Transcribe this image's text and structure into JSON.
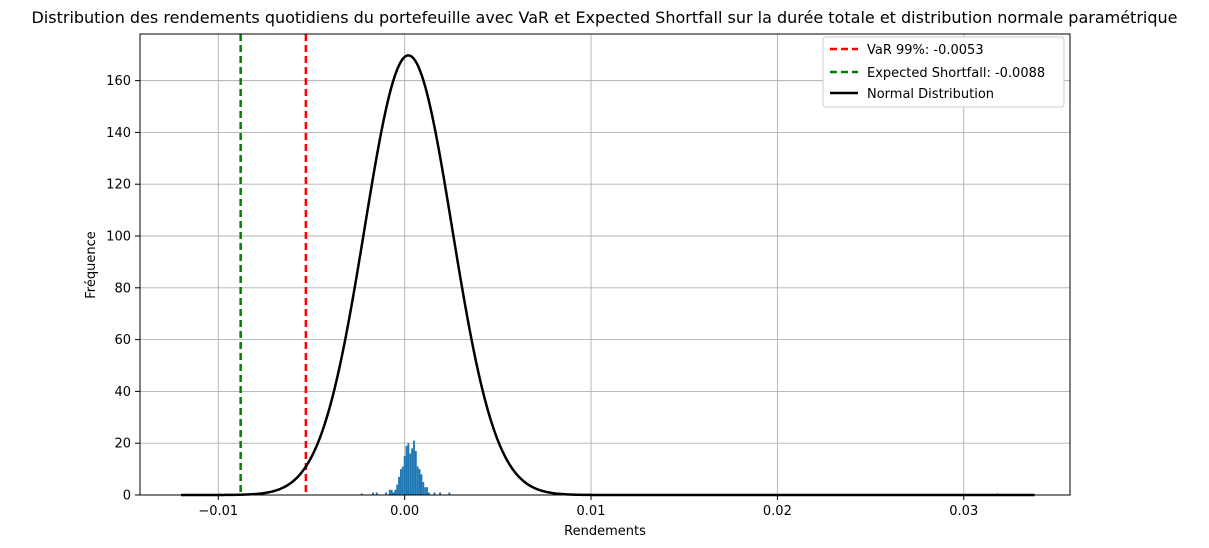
{
  "chart_data": {
    "type": "histogram",
    "title": "Distribution des rendements quotidiens du portefeuille avec VaR et Expected Shortfall sur la durée totale et distribution normale paramétrique",
    "xlabel": "Rendements",
    "ylabel": "Fréquence",
    "xlim": [
      -0.0142,
      0.0357
    ],
    "ylim": [
      0,
      178
    ],
    "x_ticks": [
      -0.01,
      0.0,
      0.01,
      0.02,
      0.03
    ],
    "x_tick_labels": [
      "−0.01",
      "0.00",
      "0.01",
      "0.02",
      "0.03"
    ],
    "y_ticks": [
      0,
      20,
      40,
      60,
      80,
      100,
      120,
      140,
      160
    ],
    "y_tick_labels": [
      "0",
      "20",
      "40",
      "60",
      "80",
      "100",
      "120",
      "140",
      "160"
    ],
    "grid": true,
    "legend_position": "top-right",
    "histogram": {
      "color": "#1f77b4",
      "bins": [
        {
          "x": -0.0099,
          "count": 0.6
        },
        {
          "x": -0.0023,
          "count": 0.6
        },
        {
          "x": -0.0017,
          "count": 1
        },
        {
          "x": -0.0015,
          "count": 1
        },
        {
          "x": -0.001,
          "count": 1
        },
        {
          "x": -0.0008,
          "count": 2
        },
        {
          "x": -0.0007,
          "count": 2
        },
        {
          "x": -0.0006,
          "count": 1
        },
        {
          "x": -0.0005,
          "count": 2
        },
        {
          "x": -0.0004,
          "count": 4
        },
        {
          "x": -0.0003,
          "count": 7
        },
        {
          "x": -0.0002,
          "count": 10
        },
        {
          "x": -0.0001,
          "count": 11
        },
        {
          "x": 0.0,
          "count": 15
        },
        {
          "x": 0.0001,
          "count": 19
        },
        {
          "x": 0.0002,
          "count": 20
        },
        {
          "x": 0.0003,
          "count": 16
        },
        {
          "x": 0.0004,
          "count": 18
        },
        {
          "x": 0.0005,
          "count": 21
        },
        {
          "x": 0.0006,
          "count": 17
        },
        {
          "x": 0.0007,
          "count": 11
        },
        {
          "x": 0.0008,
          "count": 10
        },
        {
          "x": 0.0009,
          "count": 8
        },
        {
          "x": 0.001,
          "count": 5
        },
        {
          "x": 0.0011,
          "count": 3
        },
        {
          "x": 0.0012,
          "count": 3
        },
        {
          "x": 0.0013,
          "count": 1
        },
        {
          "x": 0.0016,
          "count": 1
        },
        {
          "x": 0.0019,
          "count": 1
        },
        {
          "x": 0.0024,
          "count": 1
        },
        {
          "x": 0.0318,
          "count": 0.6
        }
      ],
      "bin_width": 0.0001
    },
    "vlines": [
      {
        "name": "VaR 99%: -0.0053",
        "x": -0.0053,
        "color": "#ff0000",
        "style": "dashed"
      },
      {
        "name": "Expected Shortfall: -0.0088",
        "x": -0.0088,
        "color": "#008000",
        "style": "dashed"
      }
    ],
    "normal_curve": {
      "name": "Normal Distribution",
      "color": "#000000",
      "mean": 0.0002,
      "std": 0.00235,
      "x_range": [
        -0.012,
        0.0338
      ]
    }
  }
}
